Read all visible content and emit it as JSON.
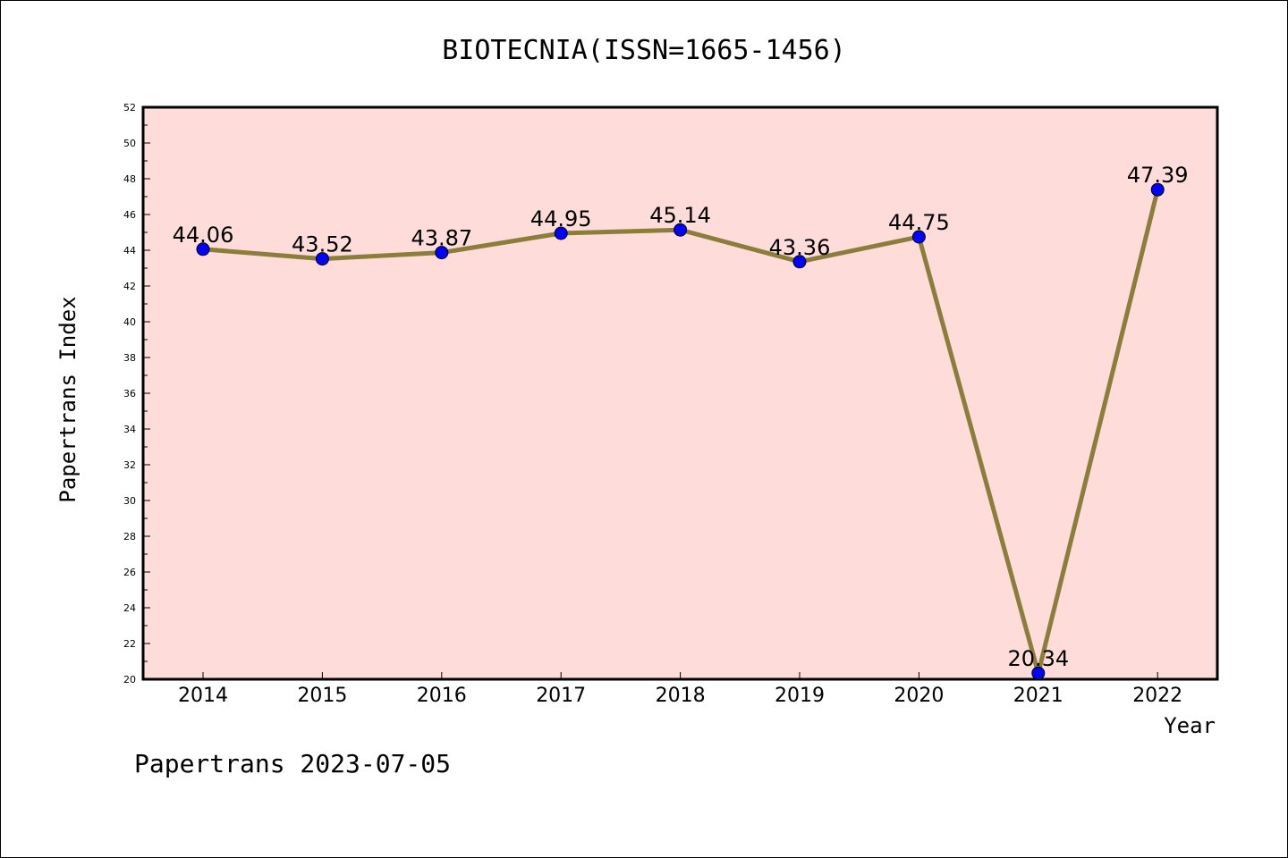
{
  "chart_data": {
    "type": "line",
    "title": "BIOTECNIA(ISSN=1665-1456)",
    "xlabel": "Year",
    "ylabel": "Papertrans Index",
    "footer": "Papertrans 2023-07-05",
    "categories": [
      "2014",
      "2015",
      "2016",
      "2017",
      "2018",
      "2019",
      "2020",
      "2021",
      "2022"
    ],
    "values": [
      44.06,
      43.52,
      43.87,
      44.95,
      45.14,
      43.36,
      44.75,
      20.34,
      47.39
    ],
    "value_labels": [
      "44.06",
      "43.52",
      "43.87",
      "44.95",
      "45.14",
      "43.36",
      "44.75",
      "20.34",
      "47.39"
    ],
    "ylim": [
      20,
      52
    ],
    "yticks": [
      "20",
      "22",
      "24",
      "26",
      "28",
      "30",
      "32",
      "34",
      "36",
      "38",
      "40",
      "42",
      "44",
      "46",
      "48",
      "50",
      "52"
    ],
    "grid": false,
    "colors": {
      "plot_background": "#fddcd9",
      "line": "#8b7d3a",
      "marker": "#0000ff"
    }
  }
}
